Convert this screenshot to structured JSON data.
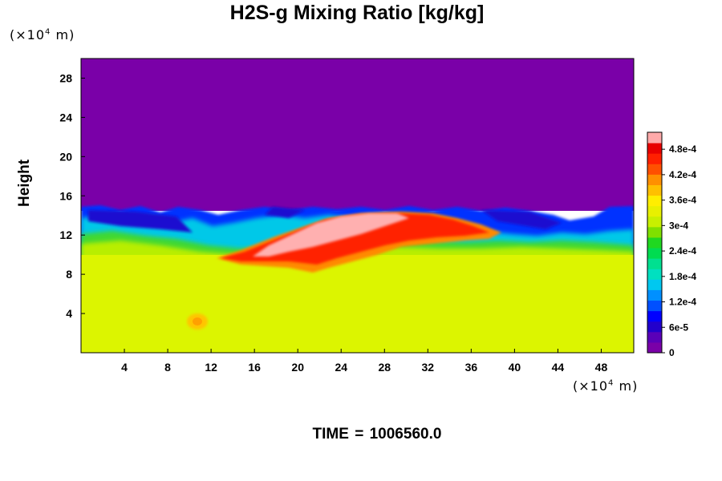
{
  "chart_data": {
    "type": "heatmap",
    "title": "H2S-g Mixing Ratio [kg/kg]",
    "xlabel": "",
    "ylabel": "Height",
    "x_unit": "(×10",
    "x_unit_exp": "4",
    "x_unit_suffix": " m)",
    "y_unit": "(×10",
    "y_unit_exp": "4",
    "y_unit_suffix": " m)",
    "xlim": [
      0,
      51
    ],
    "ylim": [
      0,
      30
    ],
    "x_ticks": [
      4,
      8,
      12,
      16,
      20,
      24,
      28,
      32,
      36,
      40,
      44,
      48
    ],
    "y_ticks": [
      4,
      8,
      12,
      16,
      20,
      24,
      28
    ],
    "colorbar": {
      "range": [
        0,
        0.00052
      ],
      "tick_values": [
        0,
        6e-05,
        0.00012,
        0.00018,
        0.00024,
        0.0003,
        0.00036,
        0.00042,
        0.00048
      ],
      "tick_labels": [
        "0",
        "6e-5",
        "1.2e-4",
        "1.8e-4",
        "2.4e-4",
        "3e-4",
        "3.6e-4",
        "4.2e-4",
        "4.8e-4"
      ],
      "colors": [
        "#7a00a8",
        "#5a00b8",
        "#2200cc",
        "#0000ff",
        "#0050ff",
        "#0090ff",
        "#00c8f0",
        "#00e0c0",
        "#00e090",
        "#00dc50",
        "#20d820",
        "#80e000",
        "#c8f000",
        "#e8f000",
        "#ffee00",
        "#ffc000",
        "#ff9000",
        "#ff5000",
        "#ff2000",
        "#e80000",
        "#ffaaaa"
      ]
    },
    "field_regions": [
      {
        "name": "upper layer",
        "x_range": [
          0,
          51
        ],
        "y_range": [
          15,
          30
        ],
        "value": 0
      },
      {
        "name": "lower layer",
        "x_range": [
          0,
          51
        ],
        "y_range": [
          0,
          10
        ],
        "value": 0.00033
      },
      {
        "name": "mixing band",
        "x_range": [
          0,
          51
        ],
        "y_range": [
          10,
          15
        ],
        "value_range": [
          0,
          0.0005
        ]
      },
      {
        "name": "high plume",
        "x_range": [
          16,
          33
        ],
        "y_range": [
          9.5,
          14.5
        ],
        "value": 0.0005
      }
    ]
  },
  "time_label": "TIME",
  "time_eq": "=",
  "time_value": "1006560.0"
}
